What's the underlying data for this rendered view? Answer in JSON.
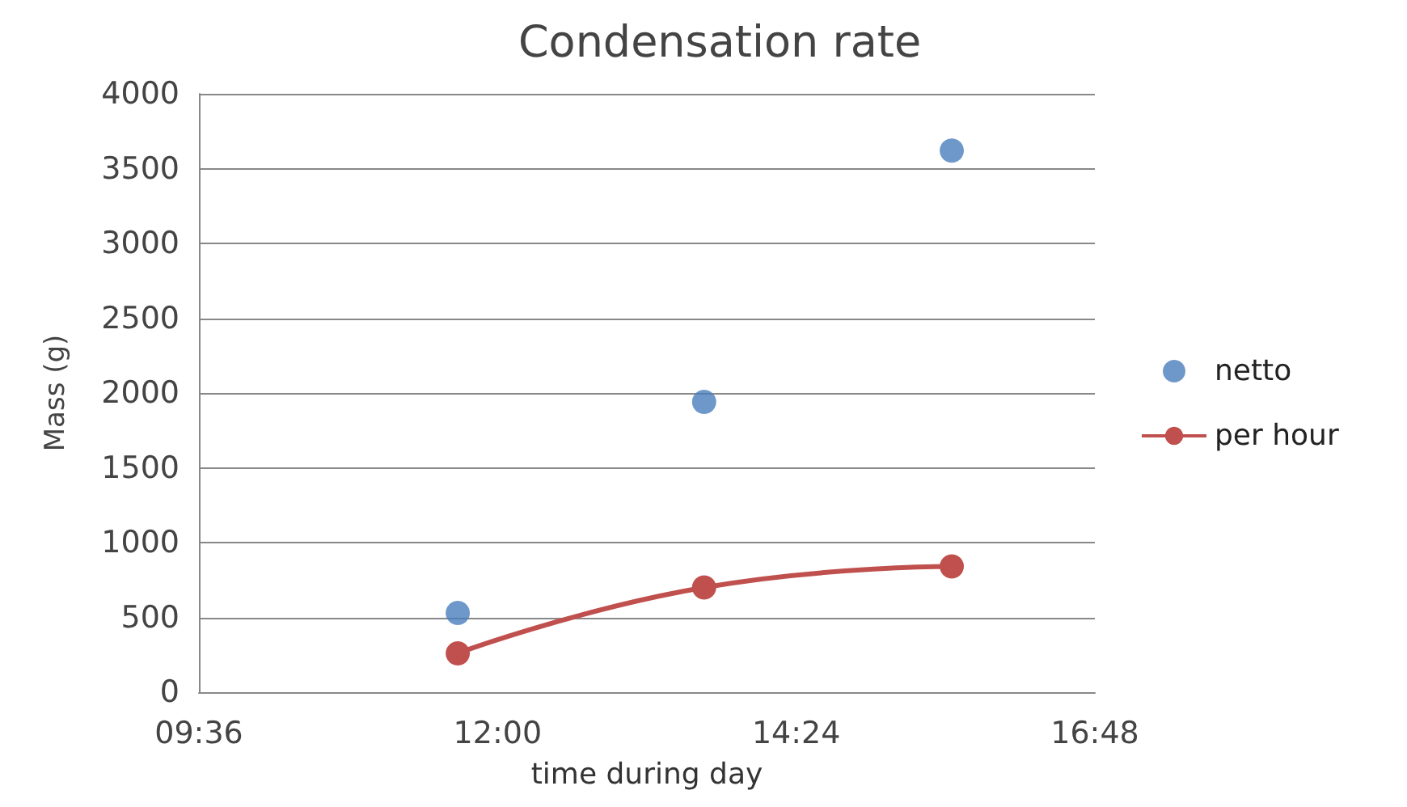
{
  "chart_data": {
    "type": "scatter",
    "title": "Condensation rate",
    "xlabel": "time during day",
    "ylabel": "Mass (g)",
    "xlim": [
      9.6,
      16.8
    ],
    "xticks": [
      {
        "value": 9.6,
        "label": "09:36"
      },
      {
        "value": 12,
        "label": "12:00"
      },
      {
        "value": 14.4,
        "label": "14:24"
      },
      {
        "value": 16.8,
        "label": "16:48"
      }
    ],
    "ylim": [
      0,
      4000
    ],
    "yticks": [
      0,
      500,
      1000,
      1500,
      2000,
      2500,
      3000,
      3500,
      4000
    ],
    "x": [
      11.68,
      13.66,
      15.65
    ],
    "series": [
      {
        "name": "netto",
        "color": "#4a7ebb",
        "values": [
          530,
          1940,
          3620
        ]
      },
      {
        "name": "per hour",
        "type": "line",
        "color": "#c0504d",
        "values": [
          260,
          700,
          840
        ]
      }
    ],
    "grid": "y",
    "legend": "right",
    "marker": "circle"
  }
}
